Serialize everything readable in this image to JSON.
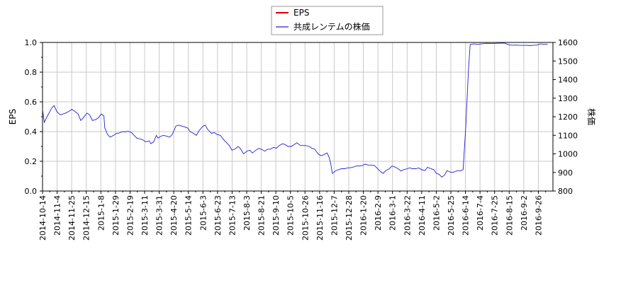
{
  "chart_data": {
    "type": "line",
    "legend": {
      "placement": "top-center",
      "entries": [
        {
          "label": "EPS",
          "color": "#dd0000"
        },
        {
          "label": "共成レンテムの株価",
          "color": "#2222cc"
        }
      ]
    },
    "left_axis": {
      "label": "EPS",
      "ylim": [
        0.0,
        1.0
      ],
      "ticks": [
        "0.0",
        "0.2",
        "0.4",
        "0.6",
        "0.8",
        "1.0"
      ]
    },
    "right_axis": {
      "label": "株価",
      "ylim": [
        800,
        1600
      ],
      "ticks": [
        "800",
        "900",
        "1000",
        "1100",
        "1200",
        "1300",
        "1400",
        "1500",
        "1600"
      ]
    },
    "grid": true,
    "x_tick_labels": [
      "2014-10-14",
      "2014-11-4",
      "2014-11-25",
      "2014-12-15",
      "2015-1-8",
      "2015-1-29",
      "2015-2-19",
      "2015-3-11",
      "2015-3-31",
      "2015-4-20",
      "2015-5-14",
      "2015-6-3",
      "2015-6-23",
      "2015-7-13",
      "2015-8-3",
      "2015-8-21",
      "2015-9-10",
      "2015-10-5",
      "2015-10-26",
      "2015-11-16",
      "2015-12-7",
      "2015-12-28",
      "2016-1-20",
      "2016-2-9",
      "2016-3-1",
      "2016-3-22",
      "2016-4-11",
      "2016-5-2",
      "2016-5-25",
      "2016-6-14",
      "2016-7-4",
      "2016-7-25",
      "2016-8-15",
      "2016-9-2",
      "2016-9-26"
    ],
    "series": [
      {
        "name": "EPS",
        "axis": "left",
        "color": "#dd0000",
        "values": []
      },
      {
        "name": "共成レンテムの株価",
        "axis": "right",
        "color": "#2222cc",
        "points": [
          [
            0,
            1240
          ],
          [
            0.2,
            1170
          ],
          [
            0.5,
            1200
          ],
          [
            0.8,
            1225
          ],
          [
            1.0,
            1245
          ],
          [
            1.3,
            1260
          ],
          [
            1.6,
            1228
          ],
          [
            2.0,
            1210
          ],
          [
            2.3,
            1215
          ],
          [
            2.6,
            1220
          ],
          [
            3.0,
            1230
          ],
          [
            3.3,
            1240
          ],
          [
            3.6,
            1230
          ],
          [
            4.0,
            1215
          ],
          [
            4.3,
            1180
          ],
          [
            4.6,
            1195
          ],
          [
            5.0,
            1220
          ],
          [
            5.3,
            1210
          ],
          [
            5.6,
            1180
          ],
          [
            6.0,
            1185
          ],
          [
            6.3,
            1195
          ],
          [
            6.6,
            1215
          ],
          [
            6.9,
            1205
          ],
          [
            7.0,
            1140
          ],
          [
            7.3,
            1105
          ],
          [
            7.6,
            1090
          ],
          [
            8.0,
            1100
          ],
          [
            8.3,
            1110
          ],
          [
            8.6,
            1112
          ],
          [
            9.0,
            1120
          ],
          [
            9.3,
            1118
          ],
          [
            9.6,
            1122
          ],
          [
            10.0,
            1115
          ],
          [
            10.3,
            1100
          ],
          [
            10.6,
            1085
          ],
          [
            11.0,
            1080
          ],
          [
            11.3,
            1075
          ],
          [
            11.6,
            1065
          ],
          [
            12.0,
            1070
          ],
          [
            12.2,
            1055
          ],
          [
            12.5,
            1065
          ],
          [
            12.8,
            1100
          ],
          [
            13.0,
            1085
          ],
          [
            13.3,
            1095
          ],
          [
            13.6,
            1100
          ],
          [
            14.0,
            1095
          ],
          [
            14.3,
            1090
          ],
          [
            14.6,
            1105
          ],
          [
            15.0,
            1150
          ],
          [
            15.3,
            1155
          ],
          [
            15.6,
            1150
          ],
          [
            16.0,
            1145
          ],
          [
            16.3,
            1140
          ],
          [
            16.6,
            1120
          ],
          [
            17.0,
            1110
          ],
          [
            17.3,
            1100
          ],
          [
            17.6,
            1125
          ],
          [
            18.0,
            1148
          ],
          [
            18.3,
            1155
          ],
          [
            18.6,
            1130
          ],
          [
            19.0,
            1110
          ],
          [
            19.3,
            1115
          ],
          [
            19.6,
            1105
          ],
          [
            20.0,
            1100
          ],
          [
            20.3,
            1080
          ],
          [
            20.6,
            1065
          ],
          [
            21.0,
            1045
          ],
          [
            21.3,
            1020
          ],
          [
            21.6,
            1025
          ],
          [
            22.0,
            1040
          ],
          [
            22.3,
            1025
          ],
          [
            22.6,
            1000
          ],
          [
            23.0,
            1015
          ],
          [
            23.3,
            1020
          ],
          [
            23.6,
            1005
          ],
          [
            24.0,
            1020
          ],
          [
            24.3,
            1030
          ],
          [
            24.6,
            1025
          ],
          [
            25.0,
            1015
          ],
          [
            25.3,
            1025
          ],
          [
            25.6,
            1025
          ],
          [
            26.0,
            1035
          ],
          [
            26.3,
            1030
          ],
          [
            26.6,
            1045
          ],
          [
            27.0,
            1055
          ],
          [
            27.3,
            1050
          ],
          [
            27.6,
            1040
          ],
          [
            28.0,
            1040
          ],
          [
            28.3,
            1050
          ],
          [
            28.6,
            1060
          ],
          [
            29.0,
            1045
          ],
          [
            29.3,
            1045
          ],
          [
            29.6,
            1045
          ],
          [
            30.0,
            1040
          ],
          [
            30.3,
            1030
          ],
          [
            30.6,
            1025
          ],
          [
            31.0,
            1000
          ],
          [
            31.3,
            990
          ],
          [
            31.6,
            995
          ],
          [
            32.0,
            1005
          ],
          [
            32.2,
            985
          ],
          [
            32.4,
            950
          ],
          [
            32.6,
            895
          ],
          [
            33.0,
            910
          ],
          [
            33.3,
            915
          ],
          [
            33.6,
            920
          ],
          [
            34.0,
            920
          ],
          [
            34.3,
            925
          ],
          [
            34.6,
            925
          ],
          [
            35.0,
            930
          ],
          [
            35.3,
            935
          ],
          [
            35.6,
            935
          ],
          [
            36.0,
            938
          ],
          [
            36.3,
            945
          ],
          [
            36.6,
            940
          ],
          [
            37.0,
            940
          ],
          [
            37.3,
            938
          ],
          [
            37.6,
            925
          ],
          [
            38.0,
            905
          ],
          [
            38.3,
            895
          ],
          [
            38.6,
            910
          ],
          [
            39.0,
            920
          ],
          [
            39.3,
            935
          ],
          [
            39.6,
            930
          ],
          [
            40.0,
            920
          ],
          [
            40.3,
            908
          ],
          [
            40.6,
            915
          ],
          [
            41.0,
            920
          ],
          [
            41.3,
            925
          ],
          [
            41.6,
            920
          ],
          [
            42.0,
            920
          ],
          [
            42.3,
            925
          ],
          [
            42.6,
            915
          ],
          [
            43.0,
            910
          ],
          [
            43.3,
            928
          ],
          [
            43.6,
            922
          ],
          [
            44.0,
            915
          ],
          [
            44.3,
            895
          ],
          [
            44.6,
            890
          ],
          [
            44.9,
            875
          ],
          [
            45.2,
            885
          ],
          [
            45.5,
            910
          ],
          [
            45.8,
            903
          ],
          [
            46.1,
            900
          ],
          [
            46.4,
            905
          ],
          [
            46.7,
            910
          ],
          [
            47.0,
            908
          ],
          [
            47.3,
            915
          ],
          [
            47.6,
            1150
          ],
          [
            47.9,
            1450
          ],
          [
            48.1,
            1590
          ],
          [
            48.5,
            1592
          ],
          [
            49.0,
            1590
          ],
          [
            49.5,
            1593
          ],
          [
            50.0,
            1595
          ],
          [
            50.5,
            1594
          ],
          [
            51.0,
            1595
          ],
          [
            51.5,
            1596
          ],
          [
            52.0,
            1596
          ],
          [
            52.4,
            1588
          ],
          [
            52.8,
            1585
          ],
          [
            53.2,
            1586
          ],
          [
            53.6,
            1585
          ],
          [
            54.0,
            1584
          ],
          [
            54.4,
            1585
          ],
          [
            54.8,
            1583
          ],
          [
            55.2,
            1585
          ],
          [
            55.6,
            1586
          ],
          [
            56.0,
            1592
          ],
          [
            56.4,
            1590
          ],
          [
            56.8,
            1590
          ]
        ]
      }
    ]
  }
}
